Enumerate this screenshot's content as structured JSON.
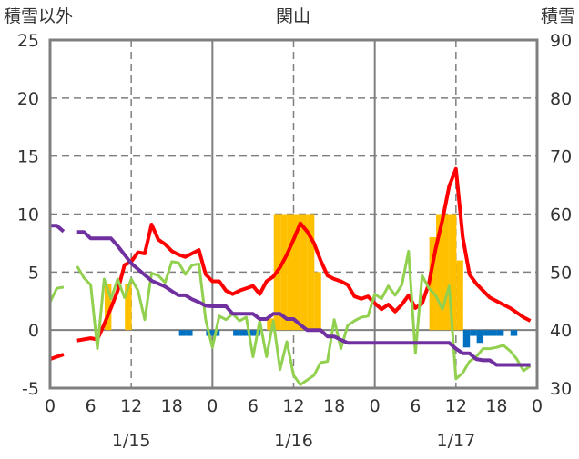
{
  "chart_data": {
    "type": "line",
    "title": "関山",
    "ylabel_left": "積雪以外",
    "ylabel_right": "積雪",
    "ylim_left": [
      -5,
      25
    ],
    "ylim_right": [
      30,
      90
    ],
    "yticks_left": [
      "25",
      "20",
      "15",
      "10",
      "5",
      "0",
      "-5"
    ],
    "yticks_right": [
      "90",
      "80",
      "70",
      "60",
      "50",
      "40",
      "30"
    ],
    "x_hours_range": [
      0,
      72
    ],
    "xtick_labels": [
      "0",
      "6",
      "12",
      "18",
      "0",
      "6",
      "12",
      "18",
      "0",
      "6",
      "12",
      "18",
      "0"
    ],
    "date_labels": [
      "1/15",
      "1/16",
      "1/17"
    ],
    "grid": true,
    "colors": {
      "temperature": "#ff0000",
      "green": "#92d050",
      "snow_depth": "#7030a0",
      "snowfall": "#ffc000",
      "blue": "#0070c0",
      "axis": "#7f7f7f"
    },
    "series": [
      {
        "name": "red-line",
        "axis": "left",
        "color": "#ff0000",
        "values": [
          -2.5,
          -2.3,
          -2.1,
          null,
          -0.9,
          -0.8,
          -0.7,
          -0.8,
          0.5,
          1.9,
          3.4,
          5.6,
          5.9,
          6.7,
          6.6,
          9.1,
          7.8,
          7.4,
          6.8,
          6.5,
          6.3,
          6.6,
          6.9,
          4.8,
          4.2,
          4.2,
          3.4,
          3.1,
          3.4,
          3.6,
          3.8,
          3.1,
          4.2,
          4.6,
          5.4,
          6.5,
          7.8,
          9.2,
          8.5,
          7.5,
          6.0,
          4.7,
          4.4,
          4.2,
          3.9,
          2.9,
          2.7,
          2.9,
          2.3,
          1.8,
          2.2,
          1.6,
          2.2,
          3.0,
          1.9,
          2.3,
          4.0,
          7.0,
          9.5,
          12.4,
          13.9,
          8.0,
          4.8,
          4.0,
          3.4,
          2.8,
          2.5,
          2.2,
          1.9,
          1.5,
          1.1,
          0.8
        ]
      },
      {
        "name": "green-line",
        "axis": "left",
        "color": "#92d050",
        "values": [
          2.4,
          3.6,
          3.7,
          null,
          5.5,
          4.5,
          3.9,
          -1.6,
          4.4,
          2.7,
          4.4,
          2.8,
          4.4,
          3.4,
          0.9,
          4.9,
          4.7,
          4.1,
          5.9,
          5.8,
          4.8,
          5.6,
          5.7,
          0.9,
          -1.5,
          1.2,
          0.9,
          1.4,
          0.8,
          1.1,
          -2.3,
          0.8,
          -2.3,
          0.8,
          -3.4,
          -1.0,
          -3.9,
          -4.7,
          -4.3,
          -3.9,
          -2.8,
          -2.7,
          0.9,
          -1.6,
          0.4,
          0.8,
          1.1,
          1.2,
          3.1,
          2.7,
          3.8,
          3.0,
          3.9,
          6.8,
          -2.0,
          4.7,
          3.6,
          3.0,
          1.8,
          3.8,
          -4.2,
          -3.7,
          -2.7,
          -2.3,
          -1.6,
          -1.6,
          -1.5,
          -1.3,
          -1.8,
          -2.5,
          -3.5,
          -3.1
        ]
      },
      {
        "name": "snow-depth-line",
        "axis": "right",
        "color": "#7030a0",
        "values": [
          58,
          58,
          57,
          null,
          56.9,
          56.9,
          55.8,
          55.8,
          55.8,
          55.8,
          54.5,
          53,
          51.5,
          50.5,
          49.5,
          48.5,
          48,
          47.5,
          46.7,
          46,
          46,
          45.3,
          44.8,
          44.2,
          44.1,
          44.1,
          44.1,
          42.8,
          42.8,
          42.8,
          42.8,
          41.9,
          41.9,
          42.8,
          42.8,
          41.9,
          41.9,
          40.9,
          40,
          40,
          40,
          38.9,
          38.9,
          38.3,
          37.8,
          37.8,
          37.8,
          37.8,
          37.8,
          37.8,
          37.8,
          37.8,
          37.8,
          37.8,
          37.8,
          37.8,
          37.8,
          37.8,
          37.8,
          37.8,
          36.8,
          36,
          36,
          35,
          34.8,
          34.8,
          34,
          34,
          34,
          34,
          34,
          34
        ]
      }
    ],
    "bars": [
      {
        "name": "snowfall-bars",
        "axis": "left",
        "color": "#ffc000",
        "points": [
          [
            9,
            4
          ],
          [
            12,
            4
          ],
          [
            33,
            1
          ],
          [
            34,
            10
          ],
          [
            35,
            10
          ],
          [
            36,
            10
          ],
          [
            37,
            10
          ],
          [
            38,
            10
          ],
          [
            39,
            10
          ],
          [
            40,
            5
          ],
          [
            57,
            8
          ],
          [
            58,
            10
          ],
          [
            59,
            10
          ],
          [
            60,
            10
          ],
          [
            61,
            6
          ]
        ]
      },
      {
        "name": "blue-bars",
        "axis": "left",
        "color": "#0070c0",
        "points": [
          [
            20,
            -0.5
          ],
          [
            21,
            -0.5
          ],
          [
            24,
            -0.5
          ],
          [
            25,
            -0.5
          ],
          [
            28,
            -0.5
          ],
          [
            29,
            -0.5
          ],
          [
            30,
            -0.5
          ],
          [
            31,
            -0.5
          ],
          [
            62,
            -1.5
          ],
          [
            63,
            -0.5
          ],
          [
            64,
            -1.1
          ],
          [
            65,
            -0.5
          ],
          [
            66,
            -0.5
          ],
          [
            67,
            -0.5
          ],
          [
            69,
            -0.5
          ]
        ]
      }
    ]
  }
}
